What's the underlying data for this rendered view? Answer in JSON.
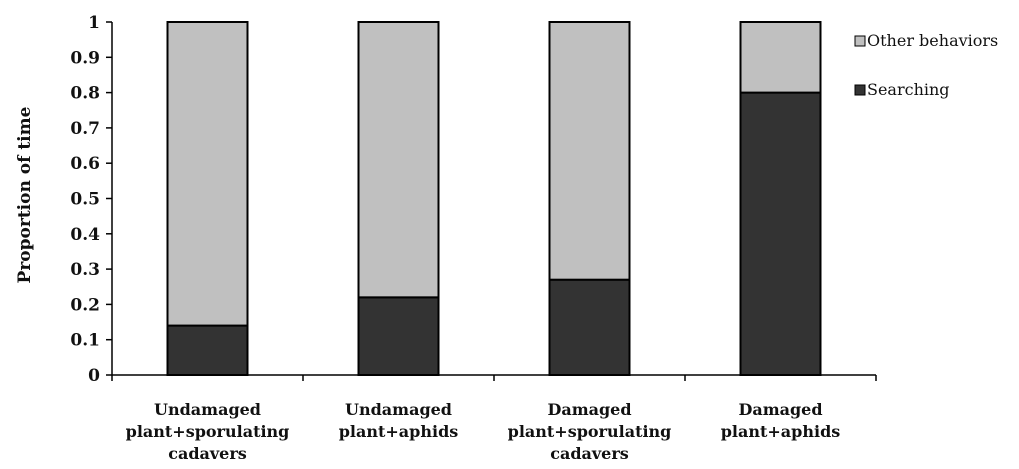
{
  "chart_data": {
    "type": "bar",
    "stacked": true,
    "categories": [
      [
        "Undamaged",
        "plant+sporulating",
        "cadavers"
      ],
      [
        "Undamaged",
        "plant+aphids"
      ],
      [
        "Damaged",
        "plant+sporulating",
        "cadavers"
      ],
      [
        "Damaged",
        "plant+aphids"
      ]
    ],
    "series": [
      {
        "name": "Searching",
        "values": [
          0.14,
          0.22,
          0.27,
          0.8
        ]
      },
      {
        "name": "Other behaviors",
        "values": [
          0.86,
          0.78,
          0.73,
          0.2
        ]
      }
    ],
    "ylabel": "Proportion of time",
    "ylim": [
      0,
      1
    ],
    "yticks": [
      "0",
      "0.1",
      "0.2",
      "0.3",
      "0.4",
      "0.5",
      "0.6",
      "0.7",
      "0.8",
      "0.9",
      "1"
    ],
    "legend": "right",
    "grid": false,
    "colors": {
      "Searching": "#333333",
      "Other behaviors": "#c0c0c0"
    }
  }
}
